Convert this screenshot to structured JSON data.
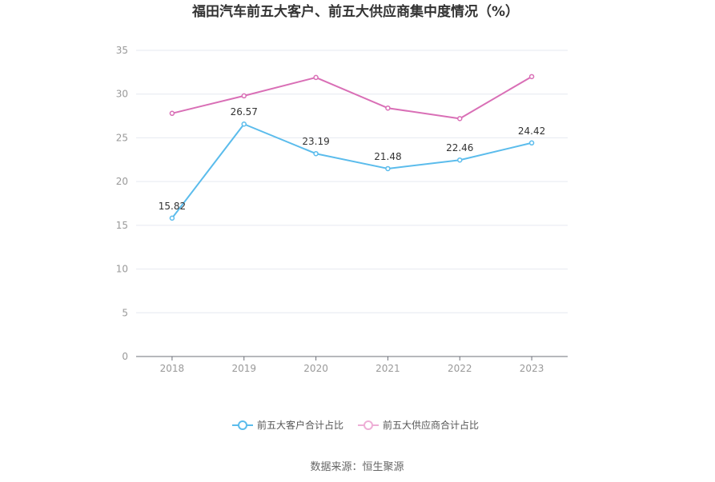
{
  "chart_data": {
    "type": "line",
    "title": "福田汽车前五大客户、前五大供应商集中度情况（%）",
    "categories": [
      "2018",
      "2019",
      "2020",
      "2021",
      "2022",
      "2023"
    ],
    "ylim": [
      0,
      35
    ],
    "yticks": [
      0,
      5,
      10,
      15,
      20,
      25,
      30,
      35
    ],
    "grid": true,
    "legend_position": "bottom",
    "series": [
      {
        "name": "前五大客户合计占比",
        "color": "#5bbcec",
        "values": [
          15.82,
          26.57,
          23.19,
          21.48,
          22.46,
          24.42
        ],
        "data_labels": [
          "15.82",
          "26.57",
          "23.19",
          "21.48",
          "22.46",
          "24.42"
        ]
      },
      {
        "name": "前五大供应商合计占比",
        "color": "#d96fb6",
        "legend_color": "#eeaed6",
        "values": [
          27.8,
          29.8,
          31.9,
          28.4,
          27.2,
          32.0
        ],
        "data_labels": []
      }
    ]
  },
  "source": "数据来源：恒生聚源"
}
